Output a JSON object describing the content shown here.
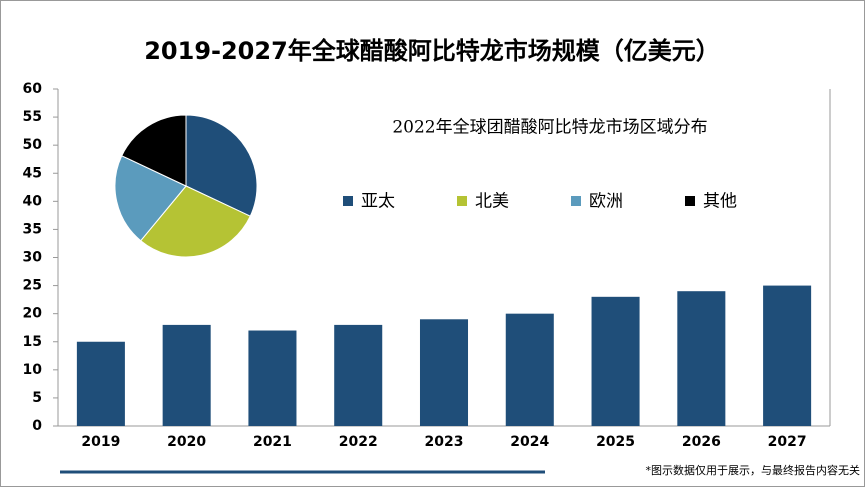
{
  "chart_data": [
    {
      "type": "bar",
      "title": "2019-2027年全球醋酸阿比特龙市场规模（亿美元）",
      "categories": [
        "2019",
        "2020",
        "2021",
        "2022",
        "2023",
        "2024",
        "2025",
        "2026",
        "2027"
      ],
      "values": [
        15,
        18,
        17,
        18,
        19,
        20,
        23,
        24,
        25
      ],
      "color": "#1f4e79",
      "ylim": [
        0,
        60
      ],
      "yticks": [
        0,
        5,
        10,
        15,
        20,
        25,
        30,
        35,
        40,
        45,
        50,
        55,
        60
      ],
      "grid": false
    },
    {
      "type": "pie",
      "title": "2022年全球团醋酸阿比特龙市场区域分布",
      "categories": [
        "亚太",
        "北美",
        "欧洲",
        "其他"
      ],
      "values": [
        32,
        29,
        21,
        18
      ],
      "colors": [
        "#1f4e79",
        "#b5c334",
        "#5b9bbd",
        "#000000"
      ]
    }
  ],
  "note": "*图示数据仅用于展示，与最终报告内容无关"
}
